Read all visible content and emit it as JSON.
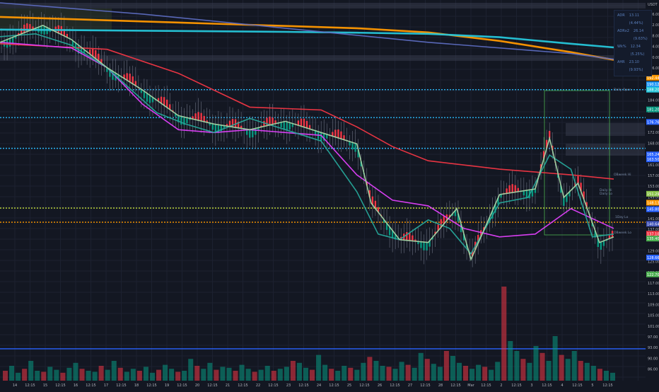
{
  "chart_data": {
    "type": "line",
    "title": "",
    "currency": "USDT",
    "grid": true,
    "legend_position": "top-right",
    "y_range": [
      85,
      220
    ],
    "x_ticks": [
      "14",
      "12:15",
      "15",
      "12:15",
      "16",
      "12:15",
      "17",
      "12:15",
      "18",
      "12:15",
      "19",
      "12:15",
      "20",
      "12:15",
      "21",
      "12:15",
      "22",
      "12:15",
      "23",
      "12:15",
      "24",
      "12:15",
      "25",
      "12:15",
      "26",
      "12:15",
      "27",
      "12:15",
      "28",
      "12:15",
      "Mar",
      "12:15",
      "2",
      "12:15",
      "3",
      "12:15",
      "4",
      "12:15",
      "5",
      "12:15"
    ],
    "y_ticks": [
      "216.00",
      "212.00",
      "208.00",
      "204.00",
      "200.00",
      "196.00",
      "192.00",
      "188.00",
      "184.00",
      "180.00",
      "176.00",
      "172.00",
      "168.00",
      "164.00",
      "161.00",
      "157.00",
      "153.00",
      "149.00",
      "145.00",
      "141.00",
      "137.00",
      "133.00",
      "129.00",
      "125.00",
      "121.00",
      "117.00",
      "113.00",
      "109.00",
      "105.00",
      "101.00",
      "97.00",
      "93.00",
      "90.00",
      "86.00"
    ],
    "price_badges": [
      {
        "label": "192.44",
        "value": 192.44,
        "color": "#ff9800"
      },
      {
        "label": "190.12",
        "value": 190.12,
        "color": "#2196f3"
      },
      {
        "label": "188.20",
        "value": 188.2,
        "color": "#26c6da"
      },
      {
        "label": "181.20",
        "value": 181.2,
        "color": "#089981"
      },
      {
        "label": "176.76",
        "value": 176.76,
        "color": "#2962ff"
      },
      {
        "label": "165.24",
        "value": 165.24,
        "color": "#2962ff"
      },
      {
        "label": "163.50",
        "value": 163.5,
        "color": "#2962ff"
      },
      {
        "label": "151.29",
        "value": 151.29,
        "color": "#8bc34a"
      },
      {
        "label": "148.13",
        "value": 148.13,
        "color": "#ff9800"
      },
      {
        "label": "145.80",
        "value": 145.8,
        "color": "#2962ff"
      },
      {
        "label": "140.64",
        "value": 140.64,
        "color": "#3f51b5"
      },
      {
        "label": "137.10",
        "value": 137.1,
        "color": "#f23645"
      },
      {
        "label": "135.40",
        "value": 135.4,
        "color": "#4caf50"
      },
      {
        "label": "128.66",
        "value": 128.66,
        "color": "#2962ff"
      },
      {
        "label": "122.70",
        "value": 122.7,
        "color": "#4caf50"
      }
    ],
    "legend": [
      {
        "name": "ADR",
        "value": "13.11 (4.44%)"
      },
      {
        "name": "ADRx2",
        "value": "26.14 (9.63%)"
      },
      {
        "name": "Wk%",
        "value": "12.34 (5.25%)"
      },
      {
        "name": "AHR",
        "value": "23.10 (9.93%)"
      }
    ],
    "annotations": [
      "Daily Open",
      "OBweek Hi",
      "OBweek Lo",
      "1Day Lo",
      "Daily Hi",
      "Daily Lo",
      "200 SMA"
    ],
    "hlines": [
      {
        "value": 188.2,
        "color": "#29b6f6",
        "dash": true
      },
      {
        "value": 178.3,
        "color": "#29b6f6",
        "dash": true
      },
      {
        "value": 167.4,
        "color": "#29b6f6",
        "dash": true
      },
      {
        "value": 146.2,
        "color": "#c6e03a",
        "dash": true
      },
      {
        "value": 141.2,
        "color": "#ff9800",
        "dash": true
      },
      {
        "value": 96.3,
        "color": "#2962ff",
        "dash": false
      }
    ],
    "series": [
      {
        "color": "#ff9800",
        "x": [
          0,
          100,
          200,
          300,
          400,
          500,
          600,
          700,
          800,
          860
        ],
        "y": [
          214,
          213.2,
          212.4,
          211.6,
          210.8,
          210,
          208.5,
          205.5,
          201.5,
          198.8
        ]
      },
      {
        "color": "#26c6da",
        "x": [
          0,
          100,
          200,
          300,
          400,
          500,
          600,
          700,
          800,
          860
        ],
        "y": [
          209.5,
          209.3,
          209.1,
          208.9,
          208.7,
          208.4,
          208,
          206.8,
          204.5,
          203.2
        ]
      },
      {
        "color": "#f23645",
        "x": [
          0,
          150,
          250,
          350,
          450,
          500,
          550,
          600,
          700,
          750,
          800,
          860
        ],
        "y": [
          204.5,
          202.5,
          194,
          182,
          181,
          175,
          168,
          163,
          160,
          159,
          158,
          156.5
        ]
      },
      {
        "color": "#e040fb",
        "x": [
          0,
          100,
          150,
          200,
          250,
          300,
          350,
          400,
          450,
          500,
          550,
          600,
          650,
          700,
          750,
          800,
          860
        ],
        "y": [
          205,
          203,
          196,
          183,
          174,
          173,
          174,
          173,
          172,
          158,
          149,
          147,
          139,
          136,
          137,
          146,
          139
        ]
      },
      {
        "color": "#26a69a",
        "x": [
          0,
          50,
          100,
          150,
          180,
          220,
          260,
          300,
          350,
          400,
          450,
          500,
          530,
          560,
          600,
          630,
          660,
          700,
          740,
          770,
          800,
          830,
          860
        ],
        "y": [
          207,
          208,
          204,
          196,
          189,
          180,
          176,
          173,
          178,
          174,
          170,
          152,
          137,
          135,
          142,
          139,
          130,
          148,
          150,
          165,
          160,
          136,
          137
        ]
      },
      {
        "color": "#a5d6a7",
        "x": [
          0,
          60,
          100,
          150,
          200,
          250,
          300,
          350,
          400,
          450,
          500,
          520,
          560,
          600,
          640,
          660,
          700,
          750,
          770,
          790,
          810,
          840,
          860
        ],
        "y": [
          205,
          211,
          206,
          196,
          188,
          179,
          176,
          174,
          177,
          173,
          169,
          148,
          135,
          134,
          146,
          128,
          151,
          153,
          171,
          150,
          155,
          134,
          136
        ]
      },
      {
        "color": "#5c6bc0",
        "x": [
          0,
          200,
          400,
          600,
          800,
          860
        ],
        "y": [
          219,
          215,
          210,
          205,
          201,
          199
        ]
      }
    ],
    "volume": [
      0.1,
      0.15,
      0.08,
      0.12,
      0.2,
      0.1,
      0.09,
      0.14,
      0.11,
      0.08,
      0.13,
      0.18,
      0.12,
      0.1,
      0.09,
      0.15,
      0.11,
      0.2,
      0.13,
      0.09,
      0.12,
      0.1,
      0.14,
      0.08,
      0.11,
      0.16,
      0.12,
      0.09,
      0.1,
      0.22,
      0.15,
      0.12,
      0.18,
      0.11,
      0.14,
      0.13,
      0.1,
      0.16,
      0.12,
      0.09,
      0.11,
      0.15,
      0.1,
      0.12,
      0.14,
      0.2,
      0.18,
      0.13,
      0.11,
      0.26,
      0.16,
      0.12,
      0.1,
      0.15,
      0.13,
      0.11,
      0.18,
      0.24,
      0.2,
      0.15,
      0.14,
      0.12,
      0.19,
      0.16,
      0.13,
      0.28,
      0.22,
      0.17,
      0.14,
      0.3,
      0.25,
      0.18,
      0.15,
      0.12,
      0.16,
      0.14,
      0.11,
      0.19,
      0.95,
      0.4,
      0.3,
      0.22,
      0.18,
      0.35,
      0.28,
      0.2,
      0.45,
      0.26,
      0.22,
      0.3,
      0.2,
      0.18,
      0.15,
      0.12,
      0.1,
      0.08
    ]
  }
}
